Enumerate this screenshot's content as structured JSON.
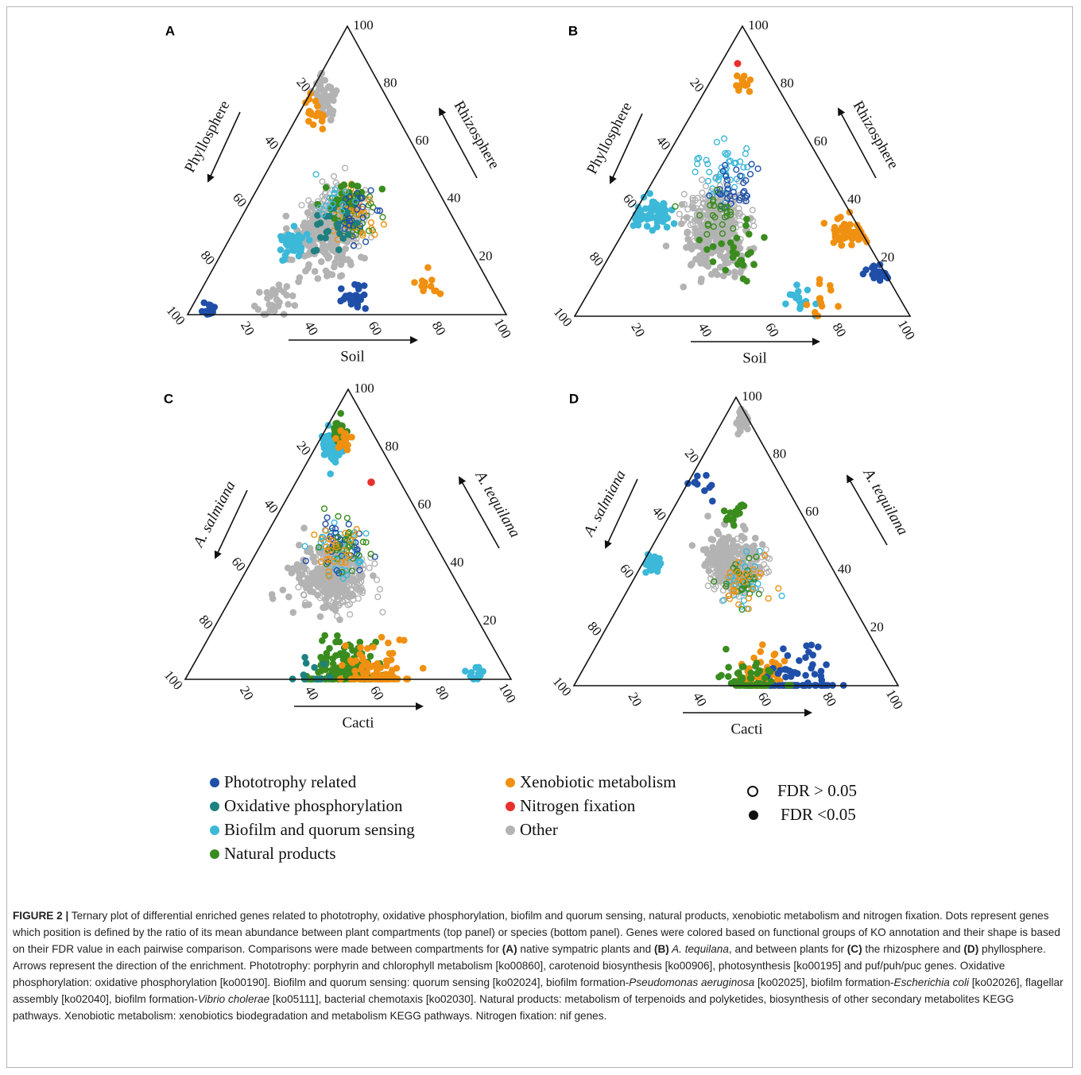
{
  "figure": {
    "colors": {
      "phototrophy": "#1f4fa8",
      "oxidative": "#1f8080",
      "biofilm": "#3cb8d8",
      "natural": "#3a8c1f",
      "xenobiotic": "#f09010",
      "nitrogen": "#e8302c",
      "other": "#b3b3b3"
    },
    "ticks": [
      "20",
      "40",
      "60",
      "80",
      "100"
    ],
    "panels": [
      {
        "letter": "A",
        "left_label": "Phyllosphere",
        "right_label": "Rhizosphere",
        "bottom_label": "Soil"
      },
      {
        "letter": "B",
        "left_label": "Phyllosphere",
        "right_label": "Rhizosphere",
        "bottom_label": "Soil"
      },
      {
        "letter": "C",
        "left_label": "A. salmiana",
        "right_label": "A. tequilana",
        "bottom_label": "Cacti"
      },
      {
        "letter": "D",
        "left_label": "A. salmiana",
        "right_label": "A. tequilana",
        "bottom_label": "Cacti"
      }
    ]
  },
  "legend": {
    "groups": [
      {
        "label": "Phototrophy related",
        "color": "#1f4fa8"
      },
      {
        "label": "Oxidative phosphorylation",
        "color": "#1f8080"
      },
      {
        "label": "Biofilm and quorum sensing",
        "color": "#3cb8d8"
      },
      {
        "label": "Natural products",
        "color": "#3a8c1f"
      },
      {
        "label": "Xenobiotic metabolism",
        "color": "#f09010"
      },
      {
        "label": "Nitrogen fixation",
        "color": "#e8302c"
      },
      {
        "label": "Other",
        "color": "#b3b3b3"
      }
    ],
    "fdr_open": "FDR > 0.05",
    "fdr_filled": "FDR <0.05"
  },
  "caption": {
    "lead": "FIGURE 2 |",
    "p1": " Ternary plot of differential enriched genes related to phototrophy, oxidative phosphorylation, biofilm and quorum sensing, natural products, xenobiotic metabolism and nitrogen fixation. Dots represent genes which position is defined by the ratio of its mean abundance between plant compartments (top panel) or species (bottom panel). Genes were colored based on functional groups of KO annotation and their shape is based on their FDR value in each pairwise comparison. Comparisons were made between compartments for ",
    "b1": "(A)",
    "p2": " native sympatric plants and ",
    "b2": "(B)",
    "i1": " A. tequilana",
    "p3": ", and between plants for ",
    "b3": "(C)",
    "p4": " the rhizosphere and ",
    "b4": "(D)",
    "p5": " phyllosphere. Arrows represent the direction of the enrichment. Phototrophy: porphyrin and chlorophyll metabolism [ko00860], carotenoid biosynthesis [ko00906], photosynthesis [ko00195] and puf/puh/puc genes. Oxidative phosphorylation: oxidative phosphorylation [ko00190]. Biofilm and quorum sensing: quorum sensing [ko02024], biofilm formation-",
    "i2": "Pseudomonas aeruginosa",
    "p6": " [ko02025], biofilm formation-",
    "i3": "Escherichia coli",
    "p7": " [ko02026], flagellar assembly [ko02040], biofilm formation-",
    "i4": "Vibrio cholerae",
    "p8": " [ko05111], bacterial chemotaxis [ko02030]. Natural products: metabolism of terpenoids and polyketides, biosynthesis of other secondary metabolites KEGG pathways. Xenobiotic metabolism: xenobiotics biodegradation and metabolism KEGG pathways. Nitrogen fixation: nif genes."
  }
}
